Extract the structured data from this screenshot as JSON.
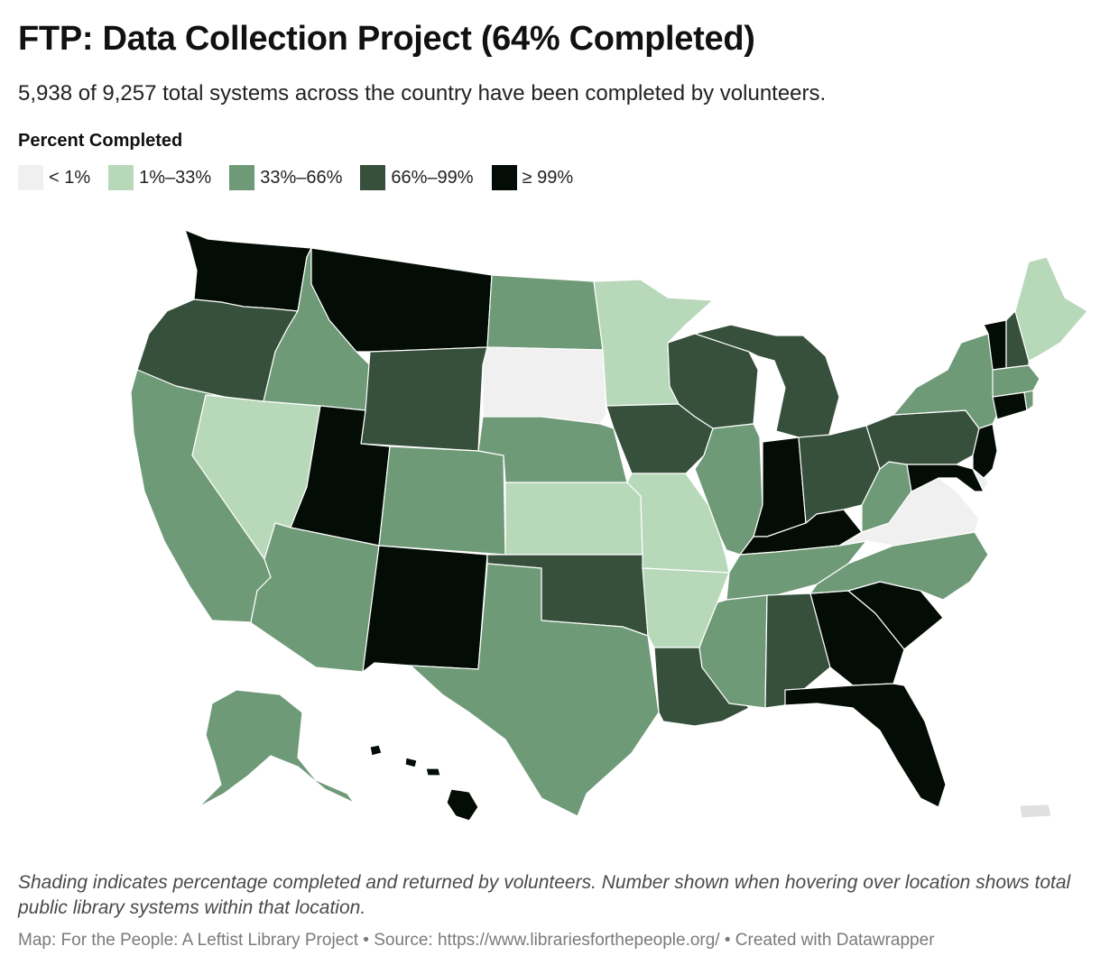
{
  "header": {
    "title": "FTP: Data Collection Project (64% Completed)",
    "subtitle": "5,938 of 9,257 total systems across the country have been completed by volunteers."
  },
  "legend": {
    "title": "Percent Completed",
    "items": [
      {
        "label": "< 1%",
        "color": "#f0f0f0"
      },
      {
        "label": "1%–33%",
        "color": "#b8d8ba"
      },
      {
        "label": "33%–66%",
        "color": "#6f9a78"
      },
      {
        "label": "66%–99%",
        "color": "#37503c"
      },
      {
        "label": "≥ 99%",
        "color": "#030c05"
      }
    ]
  },
  "map": {
    "categories": {
      "WA": "≥ 99%",
      "MT": "≥ 99%",
      "UT": "≥ 99%",
      "NM": "≥ 99%",
      "IN": "≥ 99%",
      "KY": "≥ 99%",
      "GA": "≥ 99%",
      "SC": "≥ 99%",
      "FL": "≥ 99%",
      "HI": "≥ 99%",
      "VT": "≥ 99%",
      "CT": "≥ 99%",
      "NJ": "≥ 99%",
      "MD": "≥ 99%",
      "OR": "66%–99%",
      "WY": "66%–99%",
      "IA": "66%–99%",
      "WI": "66%–99%",
      "MI": "66%–99%",
      "OH": "66%–99%",
      "PA": "66%–99%",
      "NH": "66%–99%",
      "OK": "66%–99%",
      "LA": "66%–99%",
      "AL": "66%–99%",
      "ID": "33%–66%",
      "CA": "33%–66%",
      "AZ": "33%–66%",
      "CO": "33%–66%",
      "ND": "33%–66%",
      "NE": "33%–66%",
      "TX": "33%–66%",
      "IL": "33%–66%",
      "MS": "33%–66%",
      "TN": "33%–66%",
      "NC": "33%–66%",
      "WV": "33%–66%",
      "NY": "33%–66%",
      "MA": "33%–66%",
      "RI": "33%–66%",
      "AK": "33%–66%",
      "NV": "1%–33%",
      "MN": "1%–33%",
      "KS": "1%–33%",
      "MO": "1%–33%",
      "AR": "1%–33%",
      "ME": "1%–33%",
      "SD": "< 1%",
      "VA": "< 1%",
      "DE": "< 1%"
    },
    "territory_color": "#e0e0e0"
  },
  "footer": {
    "notes": "Shading indicates percentage completed and returned by volunteers. Number shown when hovering over location shows total public library systems within that location.",
    "credit": "Map: For the People: A Leftist Library Project • Source: https://www.librariesforthepeople.org/ • Created with Datawrapper"
  }
}
